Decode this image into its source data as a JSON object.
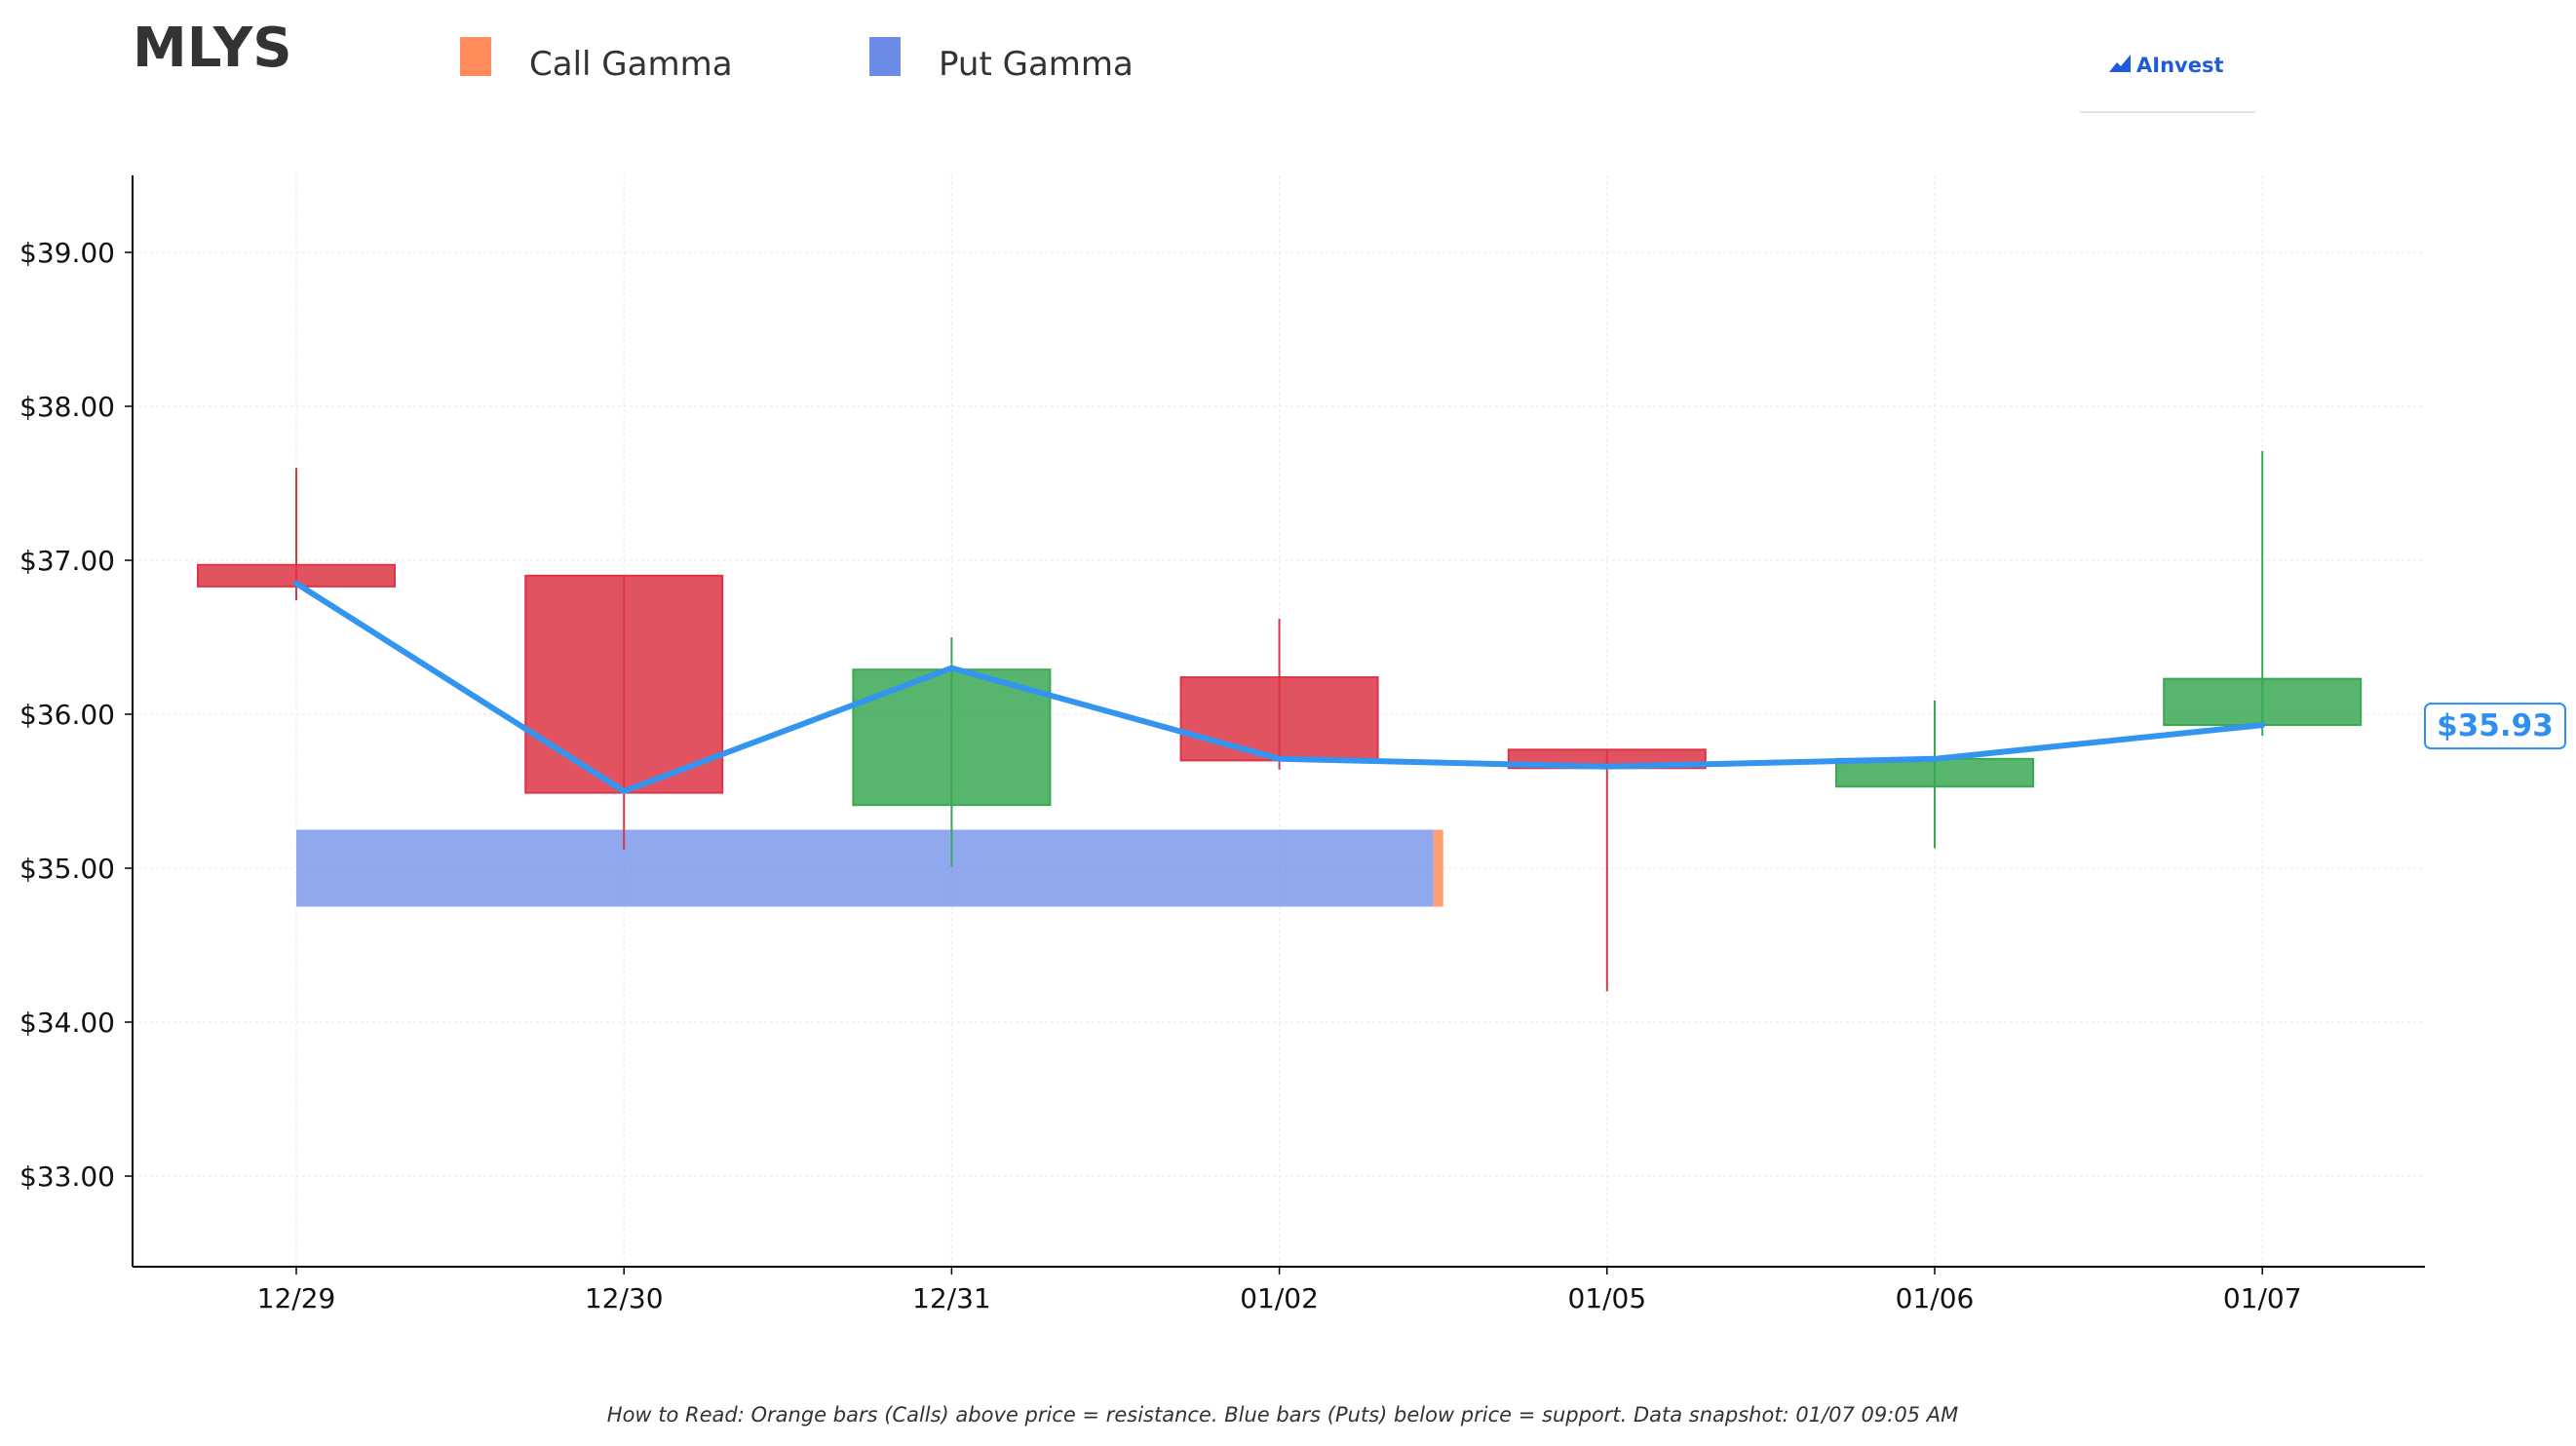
{
  "chart_data": {
    "type": "candlestick",
    "title": "MLYS",
    "legend": [
      {
        "name": "Call Gamma",
        "color": "#ff8c5a"
      },
      {
        "name": "Put Gamma",
        "color": "#6b8be8"
      }
    ],
    "legend_placement": "top",
    "categories": [
      "12/29",
      "12/30",
      "12/31",
      "01/02",
      "01/05",
      "01/06",
      "01/07"
    ],
    "candles": [
      {
        "date": "12/29",
        "open": 36.97,
        "close": 36.83,
        "high": 37.6,
        "low": 36.74
      },
      {
        "date": "12/30",
        "open": 36.9,
        "close": 35.49,
        "high": 36.9,
        "low": 35.12
      },
      {
        "date": "12/31",
        "open": 35.41,
        "close": 36.29,
        "high": 36.5,
        "low": 35.01
      },
      {
        "date": "01/02",
        "open": 36.24,
        "close": 35.7,
        "high": 36.62,
        "low": 35.64
      },
      {
        "date": "01/05",
        "open": 35.77,
        "close": 35.65,
        "high": 35.77,
        "low": 34.2
      },
      {
        "date": "01/06",
        "open": 35.53,
        "close": 35.71,
        "high": 36.09,
        "low": 35.13
      },
      {
        "date": "01/07",
        "open": 35.93,
        "close": 36.23,
        "high": 37.71,
        "low": 35.86
      }
    ],
    "close_line": [
      36.85,
      35.5,
      36.3,
      35.71,
      35.66,
      35.71,
      35.93
    ],
    "gamma_bands": [
      {
        "type": "put",
        "low": 34.75,
        "high": 35.25,
        "from_index": 0,
        "to_index": 3.47
      },
      {
        "type": "call",
        "low": 34.75,
        "high": 35.25,
        "from_index": 3.47,
        "to_index": 3.5
      }
    ],
    "y_ticks": [
      "$33.00",
      "$34.00",
      "$35.00",
      "$36.00",
      "$37.00",
      "$38.00",
      "$39.00"
    ],
    "ylim": [
      32.4,
      39.5
    ],
    "xlim": [
      -0.5,
      6.5
    ],
    "grid": true,
    "current_price_label": "$35.93",
    "colors": {
      "up": "#3aa853",
      "down": "#dc3545",
      "line": "#3395ef",
      "put": "#6b8be8",
      "call": "#ff8c5a"
    }
  },
  "branding": {
    "name": "AInvest"
  },
  "footnote": "How to Read: Orange bars (Calls) above price = resistance. Blue bars (Puts) below price = support. Data snapshot: 01/07 09:05 AM"
}
